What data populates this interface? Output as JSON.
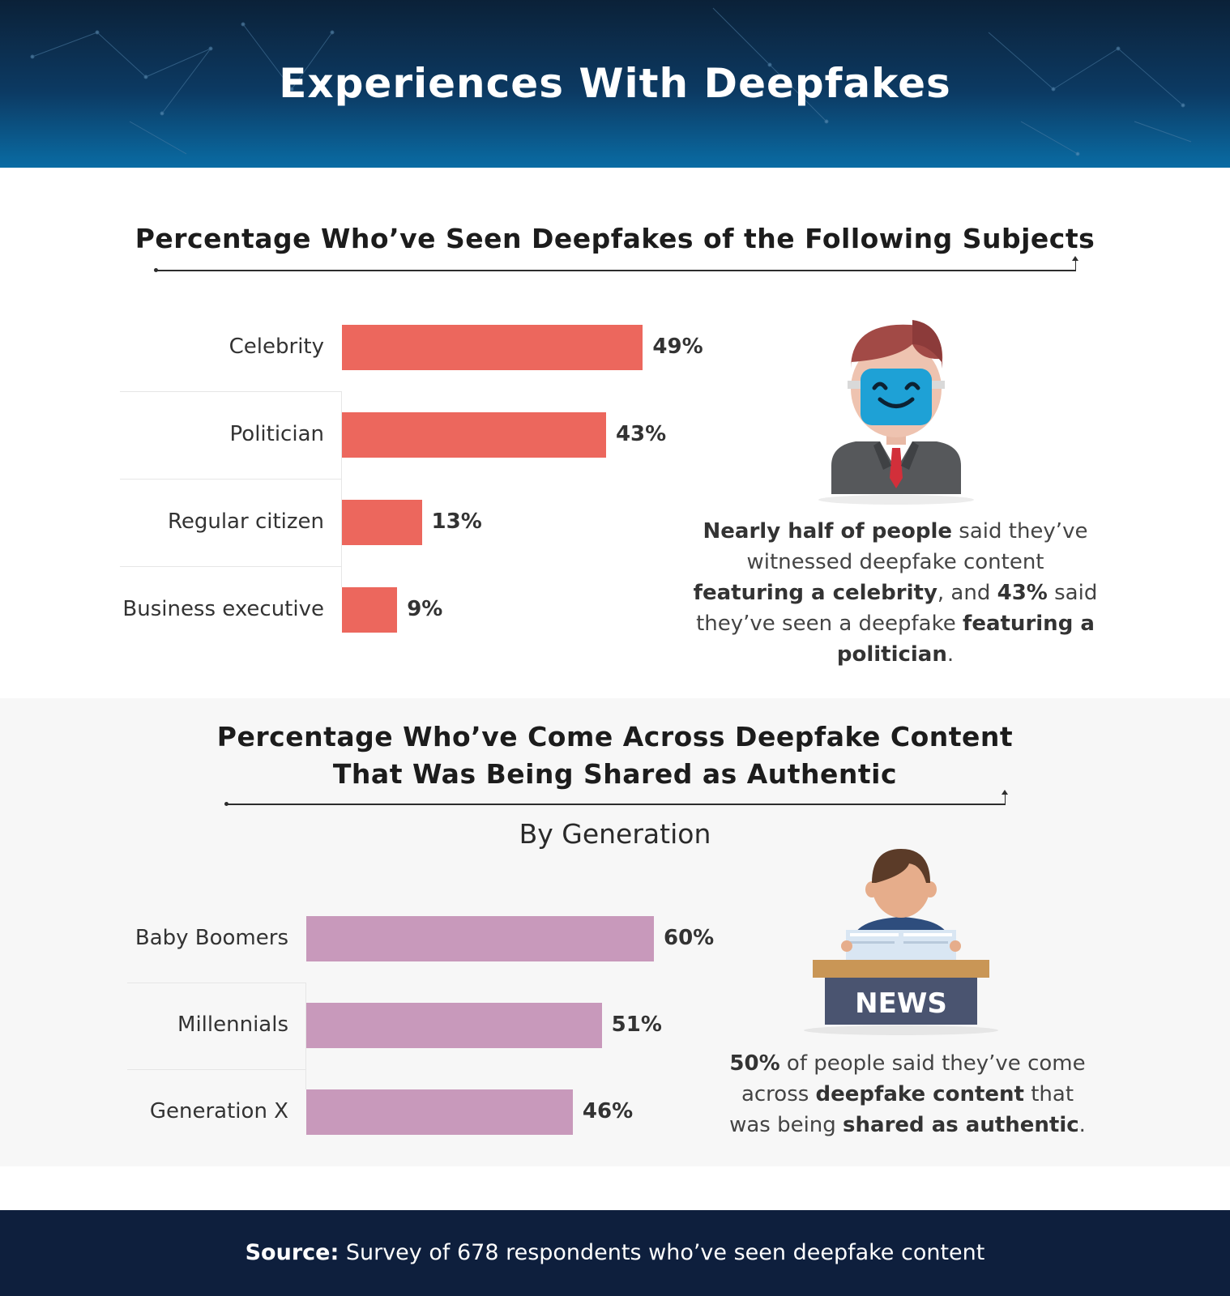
{
  "title": "Experiences With Deepfakes",
  "colors": {
    "bar_subjects": "#ec675d",
    "bar_generation": "#c899bb",
    "header_top": "#0b2138",
    "header_bottom": "#0a6ca4",
    "footer_bg": "#0e1f3d"
  },
  "chart_data": [
    {
      "type": "bar",
      "orientation": "horizontal",
      "title": "Percentage Who’ve Seen Deepfakes of the Following Subjects",
      "categories": [
        "Celebrity",
        "Politician",
        "Regular citizen",
        "Business executive"
      ],
      "values": [
        49,
        43,
        13,
        9
      ],
      "value_labels": [
        "49%",
        "43%",
        "13%",
        "9%"
      ],
      "xlim": [
        0,
        60
      ],
      "grid": false,
      "legend": "none"
    },
    {
      "type": "bar",
      "orientation": "horizontal",
      "title": "Percentage Who’ve Come Across Deepfake Content That Was Being Shared as Authentic",
      "title_lines": [
        "Percentage Who’ve Come Across Deepfake Content",
        "That Was Being Shared as Authentic"
      ],
      "subtitle": "By Generation",
      "categories": [
        "Baby Boomers",
        "Millennials",
        "Generation X"
      ],
      "values": [
        60,
        51,
        46
      ],
      "value_labels": [
        "60%",
        "51%",
        "46%"
      ],
      "xlim": [
        0,
        70
      ],
      "grid": false,
      "legend": "none"
    }
  ],
  "callout1": {
    "icon": "masked-man-icon",
    "parts": [
      {
        "t": "Nearly half of people",
        "b": true
      },
      {
        "t": " said they’ve witnessed deepfake content ",
        "b": false
      },
      {
        "t": "featuring a celebrity",
        "b": true
      },
      {
        "t": ", and ",
        "b": false
      },
      {
        "t": "43%",
        "b": true
      },
      {
        "t": " said they’ve seen a deepfake ",
        "b": false
      },
      {
        "t": "featuring a politician",
        "b": true
      },
      {
        "t": ".",
        "b": false
      }
    ]
  },
  "callout2": {
    "icon": "news-reader-icon",
    "news_sign": "NEWS",
    "parts": [
      {
        "t": "50%",
        "b": true
      },
      {
        "t": " of people said they’ve come across ",
        "b": false
      },
      {
        "t": "deepfake content",
        "b": true
      },
      {
        "t": " that was being ",
        "b": false
      },
      {
        "t": "shared as authentic",
        "b": true
      },
      {
        "t": ".",
        "b": false
      }
    ]
  },
  "footer": {
    "source_label": "Source:",
    "source_text": " Survey of 678 respondents who’ve seen deepfake content"
  }
}
